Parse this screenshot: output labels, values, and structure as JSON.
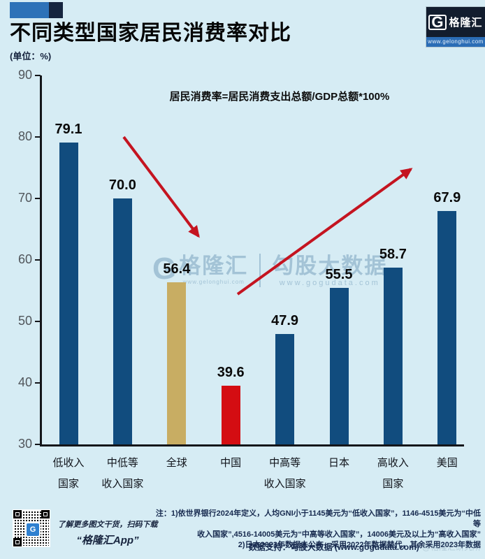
{
  "header": {
    "title": "不同类型国家居民消费率对比",
    "unit_label": "(单位：%)",
    "logo": {
      "g": "G",
      "name": "格隆汇",
      "url": "www.gelonghui.com"
    }
  },
  "chart_data": {
    "type": "bar",
    "title": "不同类型国家居民消费率对比",
    "unit": "%",
    "formula_note": "居民消费率=居民消费支出总额/GDP总额*100%",
    "categories": [
      [
        "低收入",
        "国家"
      ],
      [
        "中低等",
        "收入国家"
      ],
      [
        "全球",
        ""
      ],
      [
        "中国",
        ""
      ],
      [
        "中高等",
        "收入国家"
      ],
      [
        "日本",
        ""
      ],
      [
        "高收入",
        "国家"
      ],
      [
        "美国",
        ""
      ]
    ],
    "values": [
      79.1,
      70.0,
      56.4,
      39.6,
      47.9,
      55.5,
      58.7,
      67.9
    ],
    "bar_colors": [
      "#114c7e",
      "#114c7e",
      "#c8ad63",
      "#d40d12",
      "#114c7e",
      "#114c7e",
      "#114c7e",
      "#114c7e"
    ],
    "yticks": [
      90,
      80,
      70,
      60,
      50,
      40,
      30
    ],
    "ylim": [
      30,
      90
    ],
    "grid": false,
    "legend": null,
    "annotations": [
      {
        "name": "down-trend-arrow",
        "color": "#c41420",
        "from_xy": [
          177,
          196
        ],
        "to_xy": [
          284,
          338
        ]
      },
      {
        "name": "up-trend-arrow",
        "color": "#c41420",
        "from_xy": [
          340,
          421
        ],
        "to_xy": [
          588,
          242
        ]
      }
    ]
  },
  "watermark_center": {
    "g": "G",
    "brand": "格隆汇",
    "brand_url": "www.gelonghui.com",
    "partner": "勾股大数据",
    "partner_url": "www.gogudata.com"
  },
  "footer": {
    "qr_caption_line1": "了解更多图文干货，扫码下载",
    "qr_caption_line2": "“格隆汇App”",
    "qr_badge": "G",
    "notes": [
      "注：1)依世界银行2024年定义，人均GNI小于1145美元为“低收入国家”，1146-4515美元为“中低等",
      "收入国家”,4516-14005美元为“中高等收入国家”，14006美元及以上为“高收入国家”",
      "2)日本2023年数据未公布，采用2022年数据替代，其余采用2023年数据"
    ],
    "data_support": "数据支持：勾股大数据 (www.gogudata.com)",
    "faint_watermark": "@格隆汇研究所"
  }
}
